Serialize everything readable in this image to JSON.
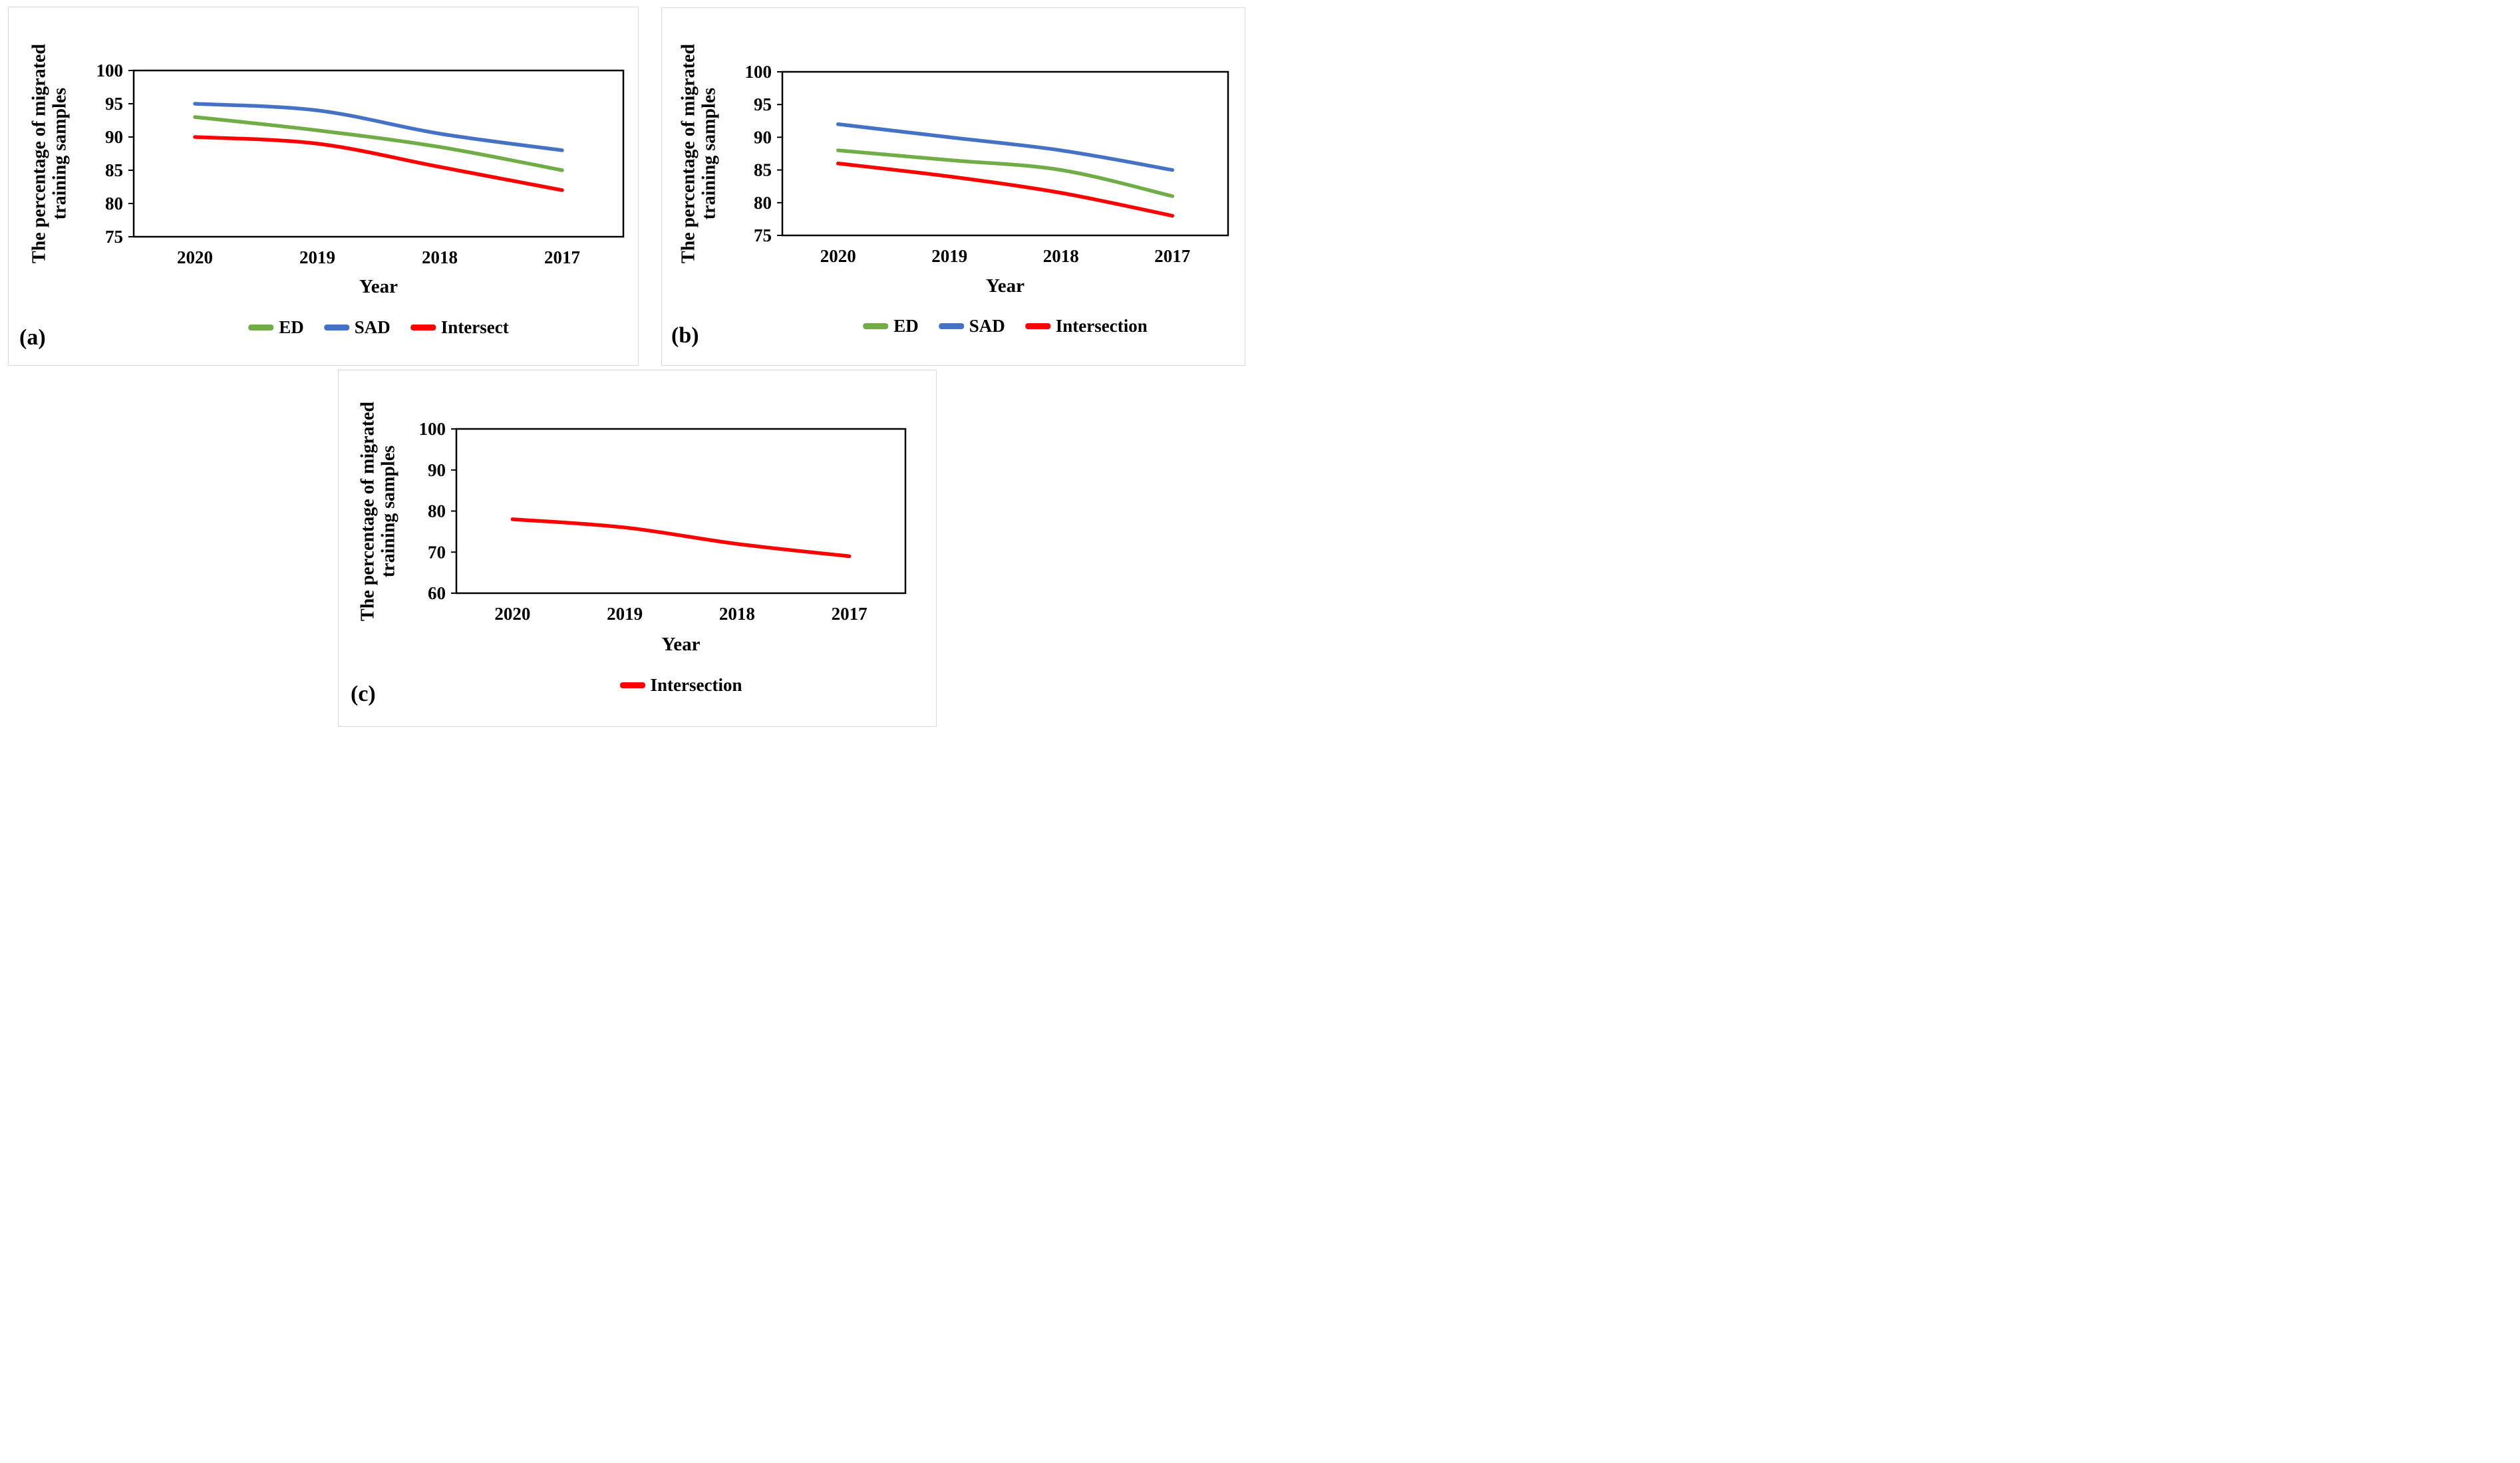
{
  "chart_data": [
    {
      "type": "line",
      "panel_label": "(a)",
      "title": "",
      "xlabel": "Year",
      "ylabel_line1": "The percentage of migrated",
      "ylabel_line2": "training samples",
      "categories": [
        "2020",
        "2019",
        "2018",
        "2017"
      ],
      "series": [
        {
          "name": "ED",
          "color": "#70AD47",
          "values": [
            93,
            91,
            88.5,
            85
          ]
        },
        {
          "name": "SAD",
          "color": "#4472C4",
          "values": [
            95,
            94,
            90.5,
            88
          ]
        },
        {
          "name": "Intersect",
          "color": "#FF0000",
          "values": [
            90,
            89,
            85.5,
            82
          ]
        }
      ],
      "ylim": [
        75,
        100
      ],
      "yticks": [
        100,
        95,
        90,
        85,
        80,
        75
      ],
      "grid": false,
      "legend_position": "bottom",
      "line_style": "smooth"
    },
    {
      "type": "line",
      "panel_label": "(b)",
      "title": "",
      "xlabel": "Year",
      "ylabel_line1": "The percentage of migrated",
      "ylabel_line2": "training samples",
      "categories": [
        "2020",
        "2019",
        "2018",
        "2017"
      ],
      "series": [
        {
          "name": "ED",
          "color": "#70AD47",
          "values": [
            88,
            86.5,
            85,
            81
          ]
        },
        {
          "name": "SAD",
          "color": "#4472C4",
          "values": [
            92,
            90,
            88,
            85
          ]
        },
        {
          "name": "Intersection",
          "color": "#FF0000",
          "values": [
            86,
            84,
            81.5,
            78
          ]
        }
      ],
      "ylim": [
        75,
        100
      ],
      "yticks": [
        100,
        95,
        90,
        85,
        80,
        75
      ],
      "grid": false,
      "legend_position": "bottom",
      "line_style": "smooth"
    },
    {
      "type": "line",
      "panel_label": "(c)",
      "title": "",
      "xlabel": "Year",
      "ylabel_line1": "The percentage of migrated",
      "ylabel_line2": "training samples",
      "categories": [
        "2020",
        "2019",
        "2018",
        "2017"
      ],
      "series": [
        {
          "name": "Intersection",
          "color": "#FF0000",
          "values": [
            78,
            76,
            72,
            69
          ]
        }
      ],
      "ylim": [
        60,
        100
      ],
      "yticks": [
        100,
        90,
        80,
        70,
        60
      ],
      "grid": false,
      "legend_position": "bottom",
      "line_style": "smooth"
    }
  ],
  "style": {
    "axis_color": "#000000",
    "panel_border_color": "#d9d9d9",
    "background": "#ffffff"
  }
}
